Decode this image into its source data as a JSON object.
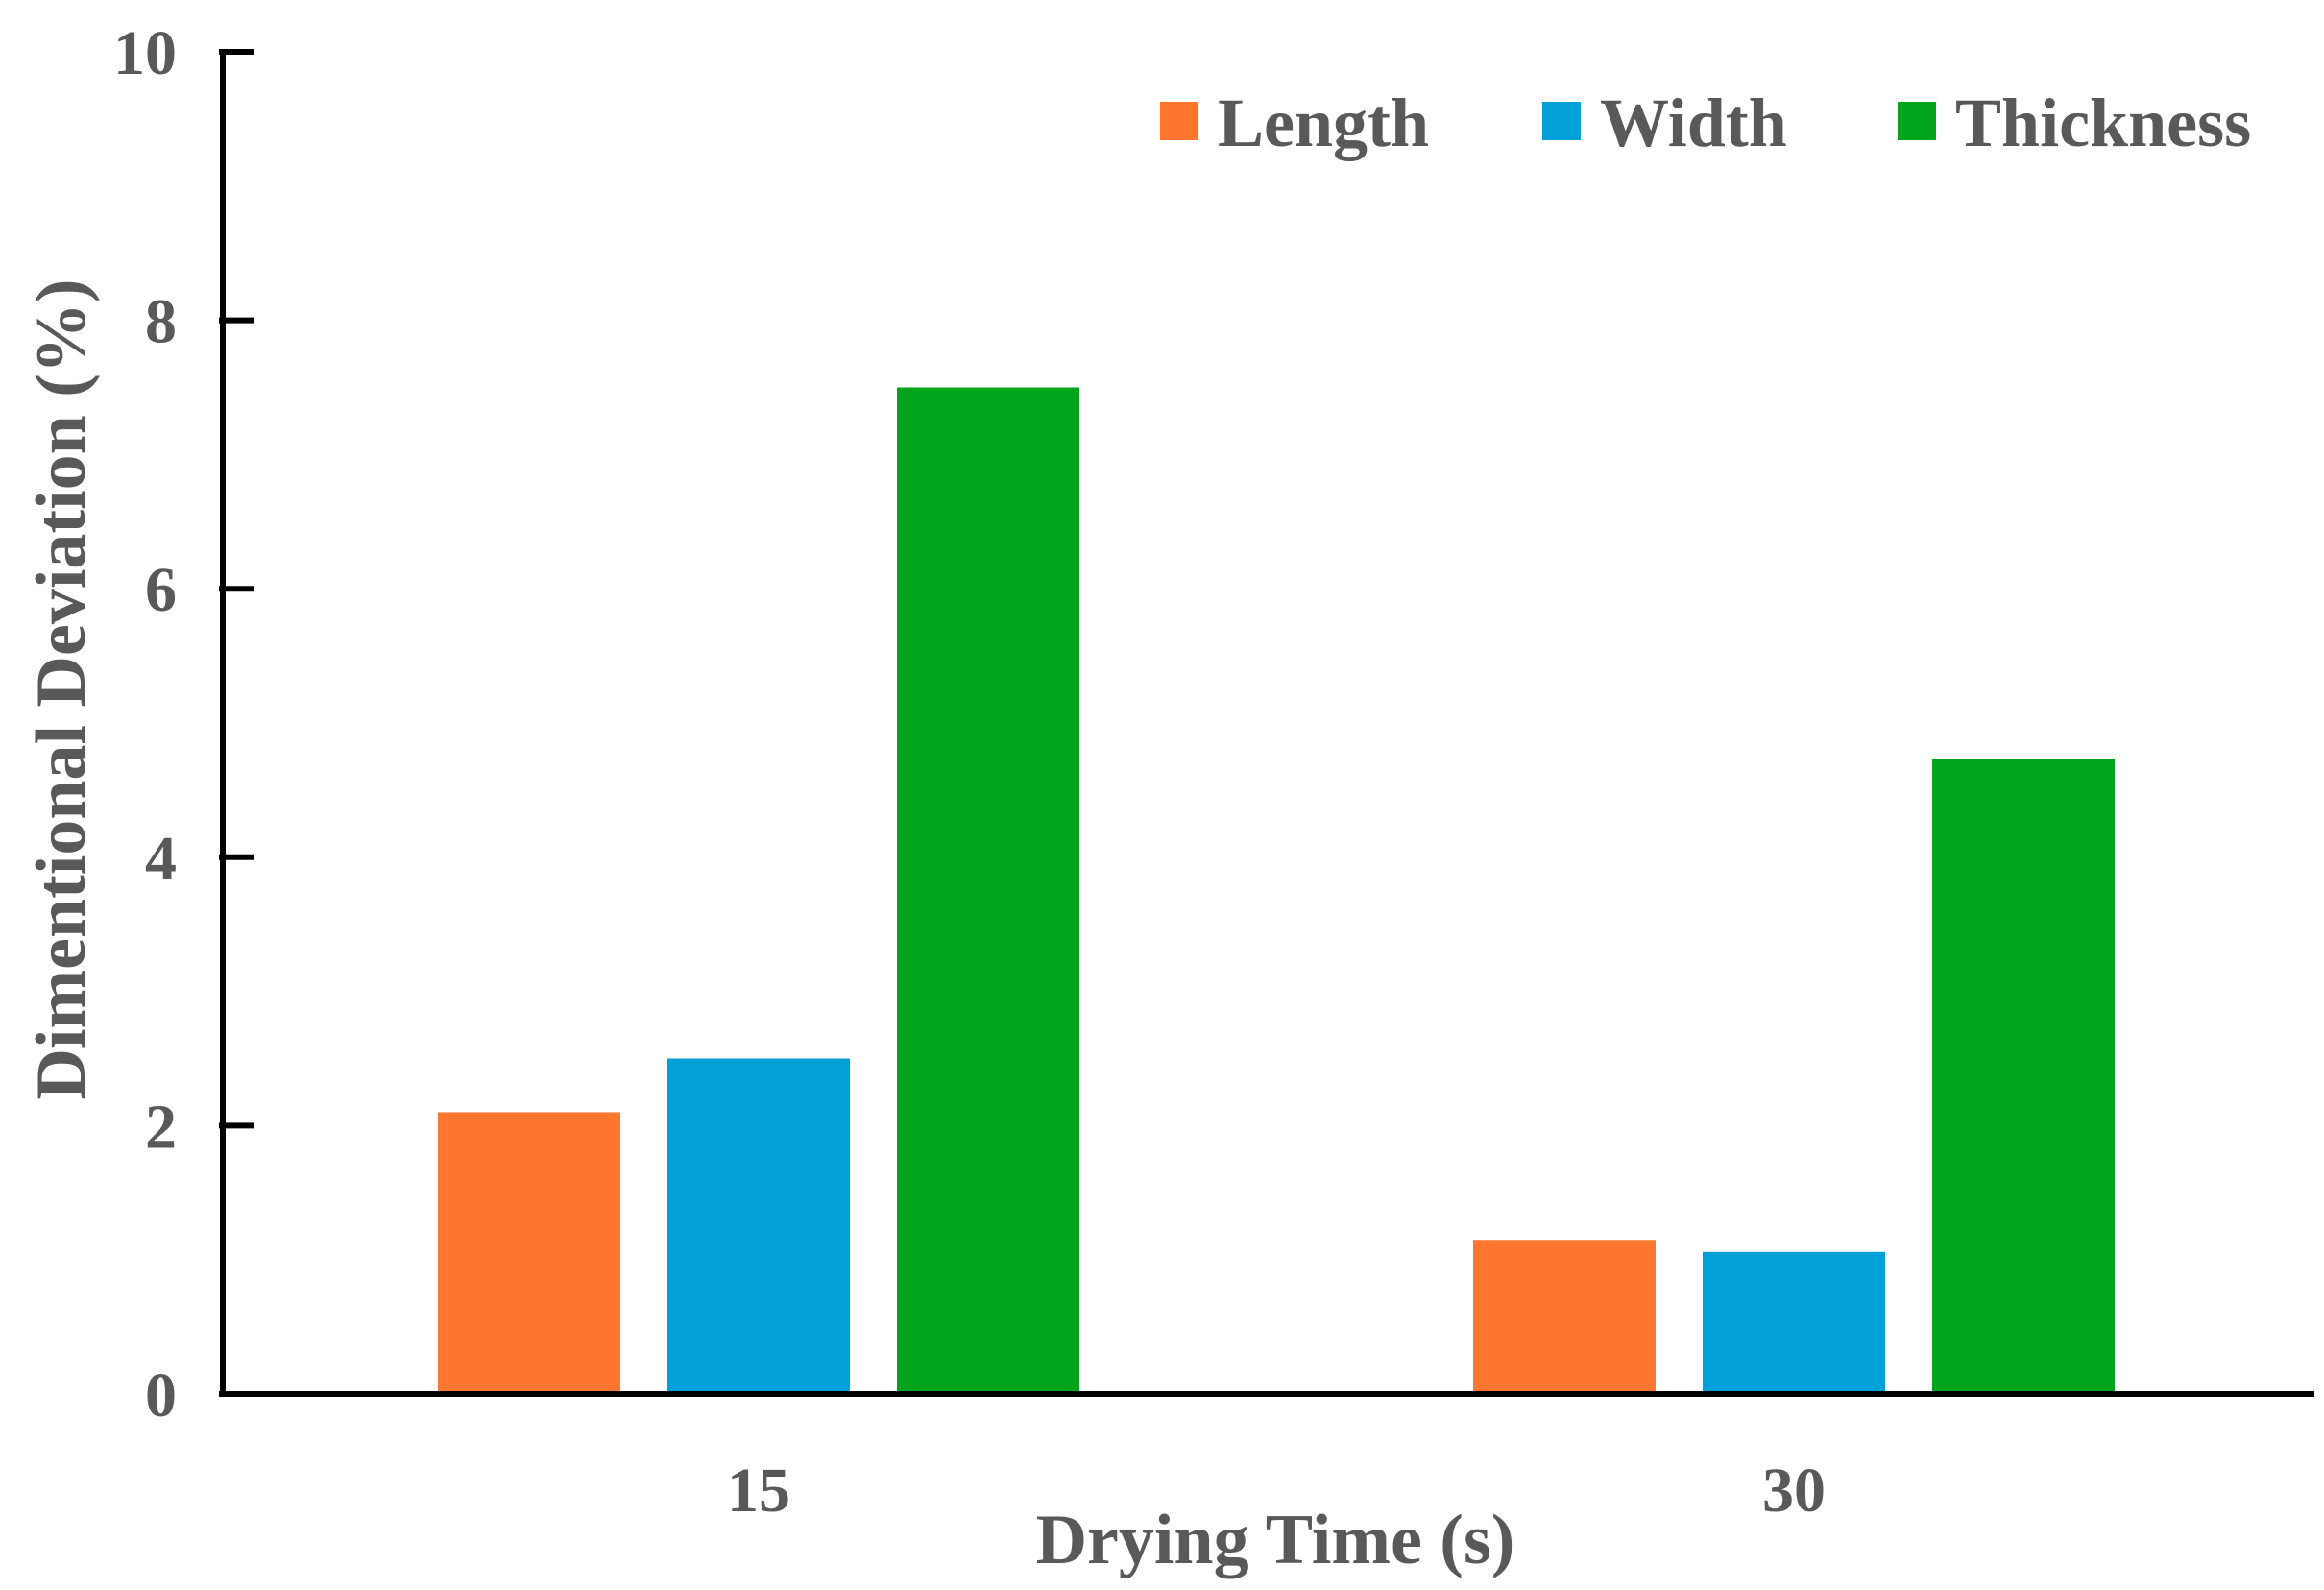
{
  "chart_data": {
    "type": "bar",
    "categories": [
      "15",
      "30"
    ],
    "series": [
      {
        "name": "Length",
        "values": [
          2.1,
          1.15
        ],
        "color": "#FF772E"
      },
      {
        "name": "Width",
        "values": [
          2.5,
          1.06
        ],
        "color": "#00A1DA"
      },
      {
        "name": "Thickness",
        "values": [
          7.5,
          4.73
        ],
        "color": "#00A51C"
      }
    ],
    "xlabel": "Drying Time (s)",
    "ylabel": "Dimentional Deviation (%)",
    "ylim": [
      0,
      10
    ],
    "yticks": [
      "0",
      "2",
      "4",
      "6",
      "8",
      "10"
    ],
    "grid": false,
    "legend_position": "top-right"
  }
}
